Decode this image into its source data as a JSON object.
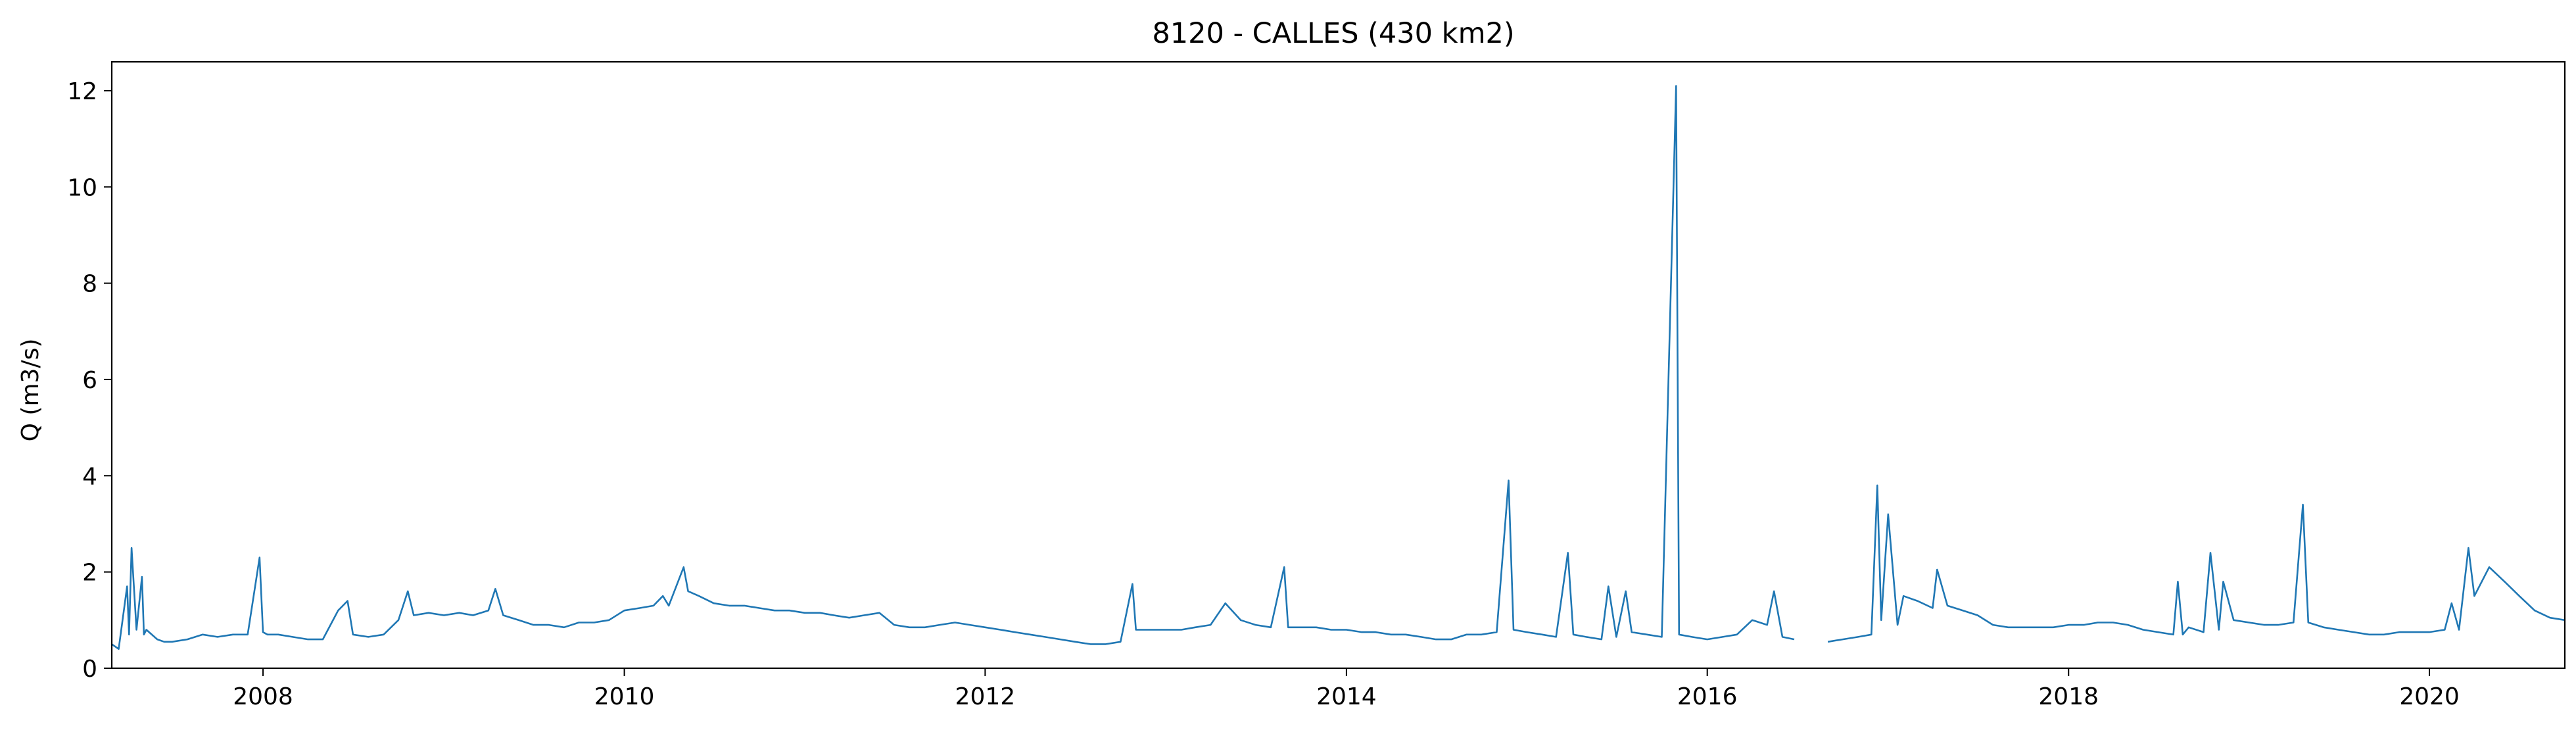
{
  "chart_data": {
    "type": "line",
    "title": "8120 - CALLES (430 km2)",
    "xlabel": "",
    "ylabel": "Q (m3/s)",
    "xlim": [
      "2007-03-01",
      "2020-10-01"
    ],
    "ylim": [
      0,
      12.6
    ],
    "grid": false,
    "color": "#1f77b4",
    "x_ticks": [
      "2008",
      "2010",
      "2012",
      "2014",
      "2016",
      "2018",
      "2020"
    ],
    "y_ticks": [
      "0",
      "2",
      "4",
      "6",
      "8",
      "10",
      "12"
    ],
    "series": [
      {
        "segments": [
          {
            "x": [
              "2007-03-01",
              "2007-03-15",
              "2007-04-01",
              "2007-04-05",
              "2007-04-10",
              "2007-04-20",
              "2007-05-01",
              "2007-05-05",
              "2007-05-10",
              "2007-06-01",
              "2007-06-15",
              "2007-07-01",
              "2007-08-01",
              "2007-09-01",
              "2007-10-01",
              "2007-11-01",
              "2007-12-01",
              "2007-12-25",
              "2008-01-01",
              "2008-01-10",
              "2008-02-01",
              "2008-03-01",
              "2008-04-01",
              "2008-05-01",
              "2008-06-01",
              "2008-06-20",
              "2008-07-01",
              "2008-08-01",
              "2008-09-01",
              "2008-10-01",
              "2008-10-20",
              "2008-11-01",
              "2008-12-01",
              "2009-01-01",
              "2009-02-01",
              "2009-03-01",
              "2009-04-01",
              "2009-04-15",
              "2009-05-01",
              "2009-06-01",
              "2009-07-01",
              "2009-08-01",
              "2009-09-01",
              "2009-10-01",
              "2009-11-01",
              "2009-12-01",
              "2010-01-01",
              "2010-02-01",
              "2010-03-01",
              "2010-03-20",
              "2010-04-01",
              "2010-05-01",
              "2010-05-10",
              "2010-06-01",
              "2010-07-01",
              "2010-08-01",
              "2010-09-01",
              "2010-10-01",
              "2010-11-01",
              "2010-12-01",
              "2011-01-01",
              "2011-02-01",
              "2011-03-01",
              "2011-04-01",
              "2011-05-01",
              "2011-06-01",
              "2011-07-01",
              "2011-08-01",
              "2011-09-01",
              "2011-10-01",
              "2011-11-01",
              "2011-12-01",
              "2012-01-01",
              "2012-02-01",
              "2012-03-01",
              "2012-04-01",
              "2012-05-01",
              "2012-06-01",
              "2012-07-01",
              "2012-08-01",
              "2012-09-01",
              "2012-10-01",
              "2012-10-25",
              "2012-11-01",
              "2012-12-01",
              "2013-01-01",
              "2013-02-01",
              "2013-03-01",
              "2013-04-01",
              "2013-05-01",
              "2013-06-01",
              "2013-07-01",
              "2013-08-01",
              "2013-08-28",
              "2013-09-05",
              "2013-10-01",
              "2013-11-01",
              "2013-12-01",
              "2014-01-01",
              "2014-02-01",
              "2014-03-01",
              "2014-04-01",
              "2014-05-01",
              "2014-06-01",
              "2014-07-01",
              "2014-08-01",
              "2014-09-01",
              "2014-10-01",
              "2014-11-01",
              "2014-11-25",
              "2014-12-05",
              "2015-01-01",
              "2015-02-01",
              "2015-03-01",
              "2015-03-25",
              "2015-04-05",
              "2015-05-01",
              "2015-06-01",
              "2015-06-15",
              "2015-07-01",
              "2015-07-20",
              "2015-08-01",
              "2015-09-01",
              "2015-10-01",
              "2015-10-30",
              "2015-11-05",
              "2015-12-01",
              "2016-01-01",
              "2016-02-01",
              "2016-03-01",
              "2016-04-01",
              "2016-05-01",
              "2016-05-15",
              "2016-06-01",
              "2016-06-25"
            ],
            "y": [
              0.5,
              0.4,
              1.7,
              0.7,
              2.5,
              0.8,
              1.9,
              0.7,
              0.8,
              0.6,
              0.55,
              0.55,
              0.6,
              0.7,
              0.65,
              0.7,
              0.7,
              2.3,
              0.75,
              0.7,
              0.7,
              0.65,
              0.6,
              0.6,
              1.2,
              1.4,
              0.7,
              0.65,
              0.7,
              1.0,
              1.6,
              1.1,
              1.15,
              1.1,
              1.15,
              1.1,
              1.2,
              1.65,
              1.1,
              1.0,
              0.9,
              0.9,
              0.85,
              0.95,
              0.95,
              1.0,
              1.2,
              1.25,
              1.3,
              1.5,
              1.3,
              2.1,
              1.6,
              1.5,
              1.35,
              1.3,
              1.3,
              1.25,
              1.2,
              1.2,
              1.15,
              1.15,
              1.1,
              1.05,
              1.1,
              1.15,
              0.9,
              0.85,
              0.85,
              0.9,
              0.95,
              0.9,
              0.85,
              0.8,
              0.75,
              0.7,
              0.65,
              0.6,
              0.55,
              0.5,
              0.5,
              0.55,
              1.75,
              0.8,
              0.8,
              0.8,
              0.8,
              0.85,
              0.9,
              1.35,
              1.0,
              0.9,
              0.85,
              2.1,
              0.85,
              0.85,
              0.85,
              0.8,
              0.8,
              0.75,
              0.75,
              0.7,
              0.7,
              0.65,
              0.6,
              0.6,
              0.7,
              0.7,
              0.75,
              3.9,
              0.8,
              0.75,
              0.7,
              0.65,
              2.4,
              0.7,
              0.65,
              0.6,
              1.7,
              0.65,
              1.6,
              0.75,
              0.7,
              0.65,
              12.1,
              0.7,
              0.65,
              0.6,
              0.65,
              0.7,
              1.0,
              0.9,
              1.6,
              0.65,
              0.6
            ]
          },
          {
            "x": [
              "2016-09-01",
              "2016-10-01",
              "2016-11-01",
              "2016-11-28",
              "2016-12-10",
              "2016-12-18",
              "2017-01-01",
              "2017-01-20",
              "2017-02-01",
              "2017-03-01",
              "2017-04-01",
              "2017-04-10",
              "2017-05-01",
              "2017-06-01",
              "2017-07-01",
              "2017-08-01",
              "2017-09-01",
              "2017-10-01",
              "2017-11-01",
              "2017-12-01",
              "2018-01-01",
              "2018-02-01",
              "2018-03-01",
              "2018-04-01",
              "2018-05-01",
              "2018-06-01",
              "2018-07-01",
              "2018-08-01",
              "2018-08-10",
              "2018-08-20",
              "2018-09-01",
              "2018-10-01",
              "2018-10-15",
              "2018-11-01",
              "2018-11-10",
              "2018-12-01",
              "2019-01-01",
              "2019-02-01",
              "2019-03-01",
              "2019-04-01",
              "2019-04-20",
              "2019-05-01",
              "2019-06-01",
              "2019-07-01",
              "2019-08-01",
              "2019-09-01",
              "2019-10-01",
              "2019-11-01",
              "2019-12-01",
              "2020-01-01",
              "2020-02-01",
              "2020-02-15",
              "2020-03-01",
              "2020-03-20",
              "2020-04-01",
              "2020-05-01",
              "2020-06-01",
              "2020-07-01",
              "2020-08-01",
              "2020-09-01",
              "2020-10-01"
            ],
            "y": [
              0.55,
              0.6,
              0.65,
              0.7,
              3.8,
              1.0,
              3.2,
              0.9,
              1.5,
              1.4,
              1.25,
              2.05,
              1.3,
              1.2,
              1.1,
              0.9,
              0.85,
              0.85,
              0.85,
              0.85,
              0.9,
              0.9,
              0.95,
              0.95,
              0.9,
              0.8,
              0.75,
              0.7,
              1.8,
              0.7,
              0.85,
              0.75,
              2.4,
              0.8,
              1.8,
              1.0,
              0.95,
              0.9,
              0.9,
              0.95,
              3.4,
              0.95,
              0.85,
              0.8,
              0.75,
              0.7,
              0.7,
              0.75,
              0.75,
              0.75,
              0.8,
              1.35,
              0.8,
              2.5,
              1.5,
              2.1,
              1.8,
              1.5,
              1.2,
              1.05,
              1.0
            ]
          }
        ]
      }
    ]
  }
}
